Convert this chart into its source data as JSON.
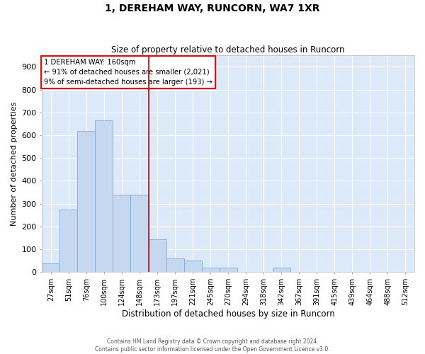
{
  "title1": "1, DEREHAM WAY, RUNCORN, WA7 1XR",
  "title2": "Size of property relative to detached houses in Runcorn",
  "xlabel": "Distribution of detached houses by size in Runcorn",
  "ylabel": "Number of detached properties",
  "categories": [
    "27sqm",
    "51sqm",
    "76sqm",
    "100sqm",
    "124sqm",
    "148sqm",
    "173sqm",
    "197sqm",
    "221sqm",
    "245sqm",
    "270sqm",
    "294sqm",
    "318sqm",
    "342sqm",
    "367sqm",
    "391sqm",
    "415sqm",
    "439sqm",
    "464sqm",
    "488sqm",
    "512sqm"
  ],
  "values": [
    40,
    275,
    620,
    665,
    340,
    340,
    145,
    60,
    50,
    20,
    20,
    0,
    0,
    20,
    0,
    0,
    0,
    0,
    0,
    0,
    0
  ],
  "bar_color": "#c5d8f0",
  "bar_edge_color": "#7eaed4",
  "annotation_line_color": "#cc0000",
  "annotation_box_text": "1 DEREHAM WAY: 160sqm\n← 91% of detached houses are smaller (2,021)\n9% of semi-detached houses are larger (193) →",
  "background_color": "#dce9f8",
  "grid_color": "#ffffff",
  "fig_facecolor": "#ffffff",
  "ylim": [
    0,
    950
  ],
  "yticks": [
    0,
    100,
    200,
    300,
    400,
    500,
    600,
    700,
    800,
    900
  ],
  "footer1": "Contains HM Land Registry data © Crown copyright and database right 2024.",
  "footer2": "Contains public sector information licensed under the Open Government Licence v3.0."
}
